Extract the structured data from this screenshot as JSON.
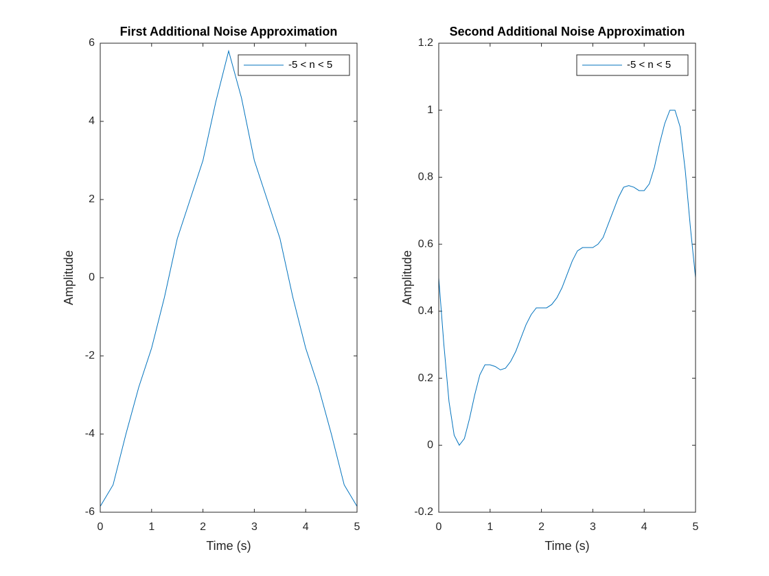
{
  "chart_data": [
    {
      "type": "line",
      "title": "First Additional Noise Approximation",
      "xlabel": "Time (s)",
      "ylabel": "Amplitude",
      "xlim": [
        0,
        5
      ],
      "xticks": [
        0,
        1,
        2,
        3,
        4,
        5
      ],
      "ylim": [
        -6,
        6
      ],
      "yticks": [
        -6,
        -4,
        -2,
        0,
        2,
        4,
        6
      ],
      "legend": "northeast",
      "x": [
        0,
        0.25,
        0.5,
        0.75,
        1,
        1.25,
        1.5,
        1.75,
        2,
        2.25,
        2.5,
        2.75,
        3,
        3.25,
        3.5,
        3.75,
        4,
        4.25,
        4.5,
        4.75,
        5
      ],
      "series": [
        {
          "name": "-5 < n < 5",
          "color": "#0072bd",
          "values": [
            -5.85,
            -5.3,
            -4.0,
            -2.8,
            -1.8,
            -0.5,
            1.0,
            2.0,
            3.0,
            4.5,
            5.8,
            4.6,
            3.0,
            2.0,
            1.0,
            -0.5,
            -1.8,
            -2.8,
            -4.0,
            -5.3,
            -5.85
          ]
        }
      ]
    },
    {
      "type": "line",
      "title": "Second Additional Noise Approximation",
      "xlabel": "Time (s)",
      "ylabel": "Amplitude",
      "xlim": [
        0,
        5
      ],
      "xticks": [
        0,
        1,
        2,
        3,
        4,
        5
      ],
      "ylim": [
        -0.2,
        1.2
      ],
      "yticks": [
        -0.2,
        0,
        0.2,
        0.4,
        0.6,
        0.8,
        1,
        1.2
      ],
      "legend": "northeast",
      "x": [
        0,
        0.1,
        0.2,
        0.3,
        0.4,
        0.5,
        0.6,
        0.7,
        0.8,
        0.9,
        1,
        1.1,
        1.2,
        1.3,
        1.4,
        1.5,
        1.6,
        1.7,
        1.8,
        1.9,
        2,
        2.1,
        2.2,
        2.3,
        2.4,
        2.5,
        2.6,
        2.7,
        2.8,
        2.9,
        3,
        3.1,
        3.2,
        3.3,
        3.4,
        3.5,
        3.6,
        3.7,
        3.8,
        3.9,
        4,
        4.1,
        4.2,
        4.3,
        4.4,
        4.5,
        4.6,
        4.7,
        4.8,
        4.9,
        5
      ],
      "series": [
        {
          "name": "-5 < n < 5",
          "color": "#0072bd",
          "values": [
            0.5,
            0.3,
            0.13,
            0.03,
            0.0,
            0.02,
            0.08,
            0.15,
            0.21,
            0.24,
            0.24,
            0.235,
            0.225,
            0.23,
            0.25,
            0.28,
            0.32,
            0.36,
            0.39,
            0.41,
            0.41,
            0.41,
            0.42,
            0.44,
            0.47,
            0.51,
            0.55,
            0.58,
            0.59,
            0.59,
            0.59,
            0.6,
            0.62,
            0.66,
            0.7,
            0.74,
            0.77,
            0.775,
            0.77,
            0.76,
            0.76,
            0.78,
            0.83,
            0.9,
            0.96,
            1.0,
            1.0,
            0.95,
            0.82,
            0.65,
            0.5
          ]
        }
      ]
    }
  ]
}
